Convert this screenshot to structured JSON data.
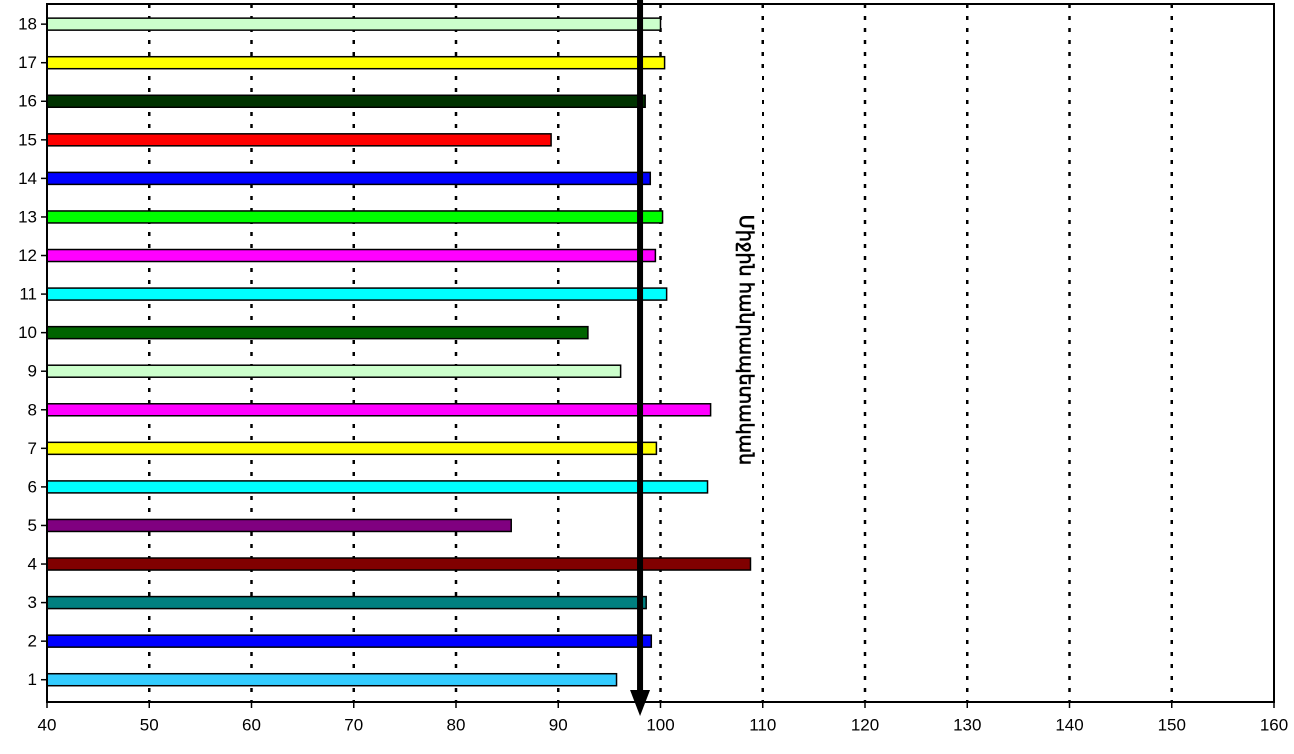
{
  "chart_data": {
    "type": "bar",
    "orientation": "horizontal",
    "categories": [
      "1",
      "2",
      "3",
      "4",
      "5",
      "6",
      "7",
      "8",
      "9",
      "10",
      "11",
      "12",
      "13",
      "14",
      "15",
      "16",
      "17",
      "18"
    ],
    "values": [
      95.7,
      99.1,
      98.6,
      108.8,
      85.4,
      104.6,
      99.6,
      104.9,
      96.1,
      92.9,
      100.6,
      99.5,
      100.2,
      99.0,
      89.3,
      98.5,
      100.4,
      100.0
    ],
    "bar_colors": [
      "#33ccff",
      "#0000ff",
      "#008080",
      "#800000",
      "#800080",
      "#00ffff",
      "#ffff00",
      "#ff00ff",
      "#ccffcc",
      "#006400",
      "#00ffff",
      "#ff00ff",
      "#00ff00",
      "#0000ff",
      "#ff0000",
      "#003300",
      "#ffff00",
      "#ccffcc"
    ],
    "xlim": [
      40,
      160
    ],
    "xticks": [
      40,
      50,
      60,
      70,
      80,
      90,
      100,
      110,
      120,
      130,
      140,
      150,
      160
    ],
    "grid": "vertical dotted",
    "legend": "none",
    "title": "",
    "xlabel": "",
    "ylabel": ""
  },
  "annotation": {
    "label": "Միջին հանրապետական",
    "arrow_at": 98
  }
}
